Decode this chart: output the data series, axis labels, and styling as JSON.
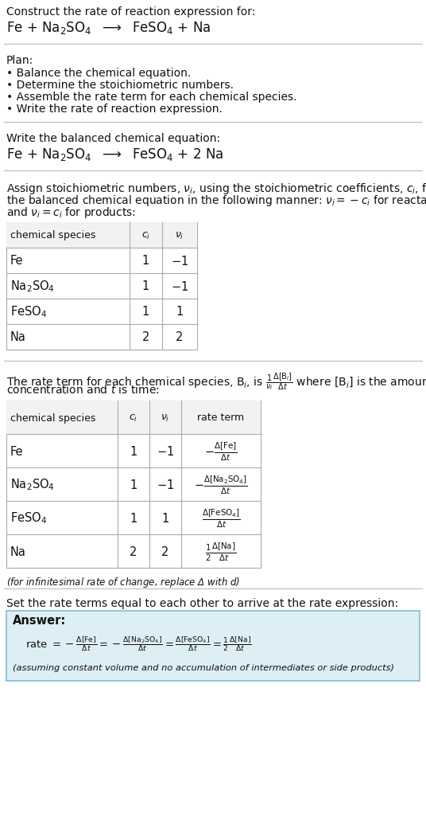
{
  "bg_color": "#ffffff",
  "answer_bg_color": "#ddeef5",
  "answer_border_color": "#88bbcc",
  "title_line1": "Construct the rate of reaction expression for:",
  "reaction_unbalanced": "Fe + Na$_2$SO$_4$  $\\longrightarrow$  FeSO$_4$ + Na",
  "plan_header": "Plan:",
  "plan_items": [
    "• Balance the chemical equation.",
    "• Determine the stoichiometric numbers.",
    "• Assemble the rate term for each chemical species.",
    "• Write the rate of reaction expression."
  ],
  "balanced_header": "Write the balanced chemical equation:",
  "reaction_balanced": "Fe + Na$_2$SO$_4$  $\\longrightarrow$  FeSO$_4$ + 2 Na",
  "stoich_header_lines": [
    "Assign stoichiometric numbers, $\\nu_i$, using the stoichiometric coefficients, $c_i$, from",
    "the balanced chemical equation in the following manner: $\\nu_i = -c_i$ for reactants",
    "and $\\nu_i = c_i$ for products:"
  ],
  "table1_cols": [
    "chemical species",
    "$c_i$",
    "$\\nu_i$"
  ],
  "table1_data": [
    [
      "Fe",
      "1",
      "$-1$"
    ],
    [
      "Na$_2$SO$_4$",
      "1",
      "$-1$"
    ],
    [
      "FeSO$_4$",
      "1",
      "1"
    ],
    [
      "Na",
      "2",
      "2"
    ]
  ],
  "rate_term_header_lines": [
    "The rate term for each chemical species, B$_i$, is $\\frac{1}{\\nu_i}\\frac{\\Delta[\\mathrm{B}_i]}{\\Delta t}$ where [B$_i$] is the amount",
    "concentration and $t$ is time:"
  ],
  "table2_cols": [
    "chemical species",
    "$c_i$",
    "$\\nu_i$",
    "rate term"
  ],
  "table2_data_species": [
    "Fe",
    "Na$_2$SO$_4$",
    "FeSO$_4$",
    "Na"
  ],
  "table2_data_ci": [
    "1",
    "1",
    "1",
    "2"
  ],
  "table2_data_vi": [
    "$-1$",
    "$-1$",
    "1",
    "2"
  ],
  "table2_data_rate": [
    "$-\\frac{\\Delta[\\mathrm{Fe}]}{\\Delta t}$",
    "$-\\frac{\\Delta[\\mathrm{Na}_2\\mathrm{SO}_4]}{\\Delta t}$",
    "$\\frac{\\Delta[\\mathrm{FeSO}_4]}{\\Delta t}$",
    "$\\frac{1}{2}\\frac{\\Delta[\\mathrm{Na}]}{\\Delta t}$"
  ],
  "infinitesimal_note": "(for infinitesimal rate of change, replace Δ with $d$)",
  "rate_expr_header": "Set the rate terms equal to each other to arrive at the rate expression:",
  "answer_label": "Answer:",
  "rate_expr_line": "rate $= -\\frac{\\Delta[\\mathrm{Fe}]}{\\Delta t} = -\\frac{\\Delta[\\mathrm{Na}_2\\mathrm{SO}_4]}{\\Delta t} = \\frac{\\Delta[\\mathrm{FeSO}_4]}{\\Delta t} = \\frac{1}{2}\\frac{\\Delta[\\mathrm{Na}]}{\\Delta t}$",
  "answer_note": "(assuming constant volume and no accumulation of intermediates or side products)",
  "sep_color": "#bbbbbb",
  "table_border_color": "#aaaaaa",
  "table_header_bg": "#f2f2f2"
}
